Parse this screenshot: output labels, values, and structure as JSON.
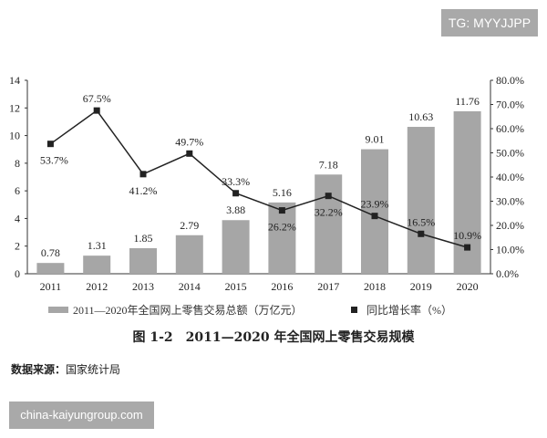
{
  "watermarks": {
    "top": "TG: MYYJJPP",
    "bottom": "china-kaiyungroup.com"
  },
  "caption": "图 1-2　2011—2020 年全国网上零售交易规模",
  "source": {
    "label": "数据来源：",
    "value": "国家统计局"
  },
  "chart_data": {
    "type": "bar+line",
    "categories": [
      "2011",
      "2012",
      "2013",
      "2014",
      "2015",
      "2016",
      "2017",
      "2018",
      "2019",
      "2020"
    ],
    "series": [
      {
        "name": "2011—2020年全国网上零售交易总额（万亿元）",
        "type": "bar",
        "axis": "left",
        "color": "#a6a6a6",
        "values": [
          0.78,
          1.31,
          1.85,
          2.79,
          3.88,
          5.16,
          7.18,
          9.01,
          10.63,
          11.76
        ],
        "labels": [
          "0.78",
          "1.31",
          "1.85",
          "2.79",
          "3.88",
          "5.16",
          "7.18",
          "9.01",
          "10.63",
          "11.76"
        ]
      },
      {
        "name": "同比增长率（%）",
        "type": "line",
        "axis": "right",
        "color": "#222222",
        "values": [
          53.7,
          67.5,
          41.2,
          49.7,
          33.3,
          26.2,
          32.2,
          23.9,
          16.5,
          10.9
        ],
        "labels": [
          "53.7%",
          "67.5%",
          "41.2%",
          "49.7%",
          "33.3%",
          "26.2%",
          "32.2%",
          "23.9%",
          "16.5%",
          "10.9%"
        ]
      }
    ],
    "left_axis": {
      "ylim": [
        0,
        14
      ],
      "ticks": [
        "0",
        "2",
        "4",
        "6",
        "8",
        "10",
        "12",
        "14"
      ]
    },
    "right_axis": {
      "ylim": [
        0,
        80
      ],
      "ticks": [
        "0.0%",
        "10.0%",
        "20.0%",
        "30.0%",
        "40.0%",
        "50.0%",
        "60.0%",
        "70.0%",
        "80.0%"
      ]
    },
    "grid": false,
    "legend": "bottom"
  }
}
